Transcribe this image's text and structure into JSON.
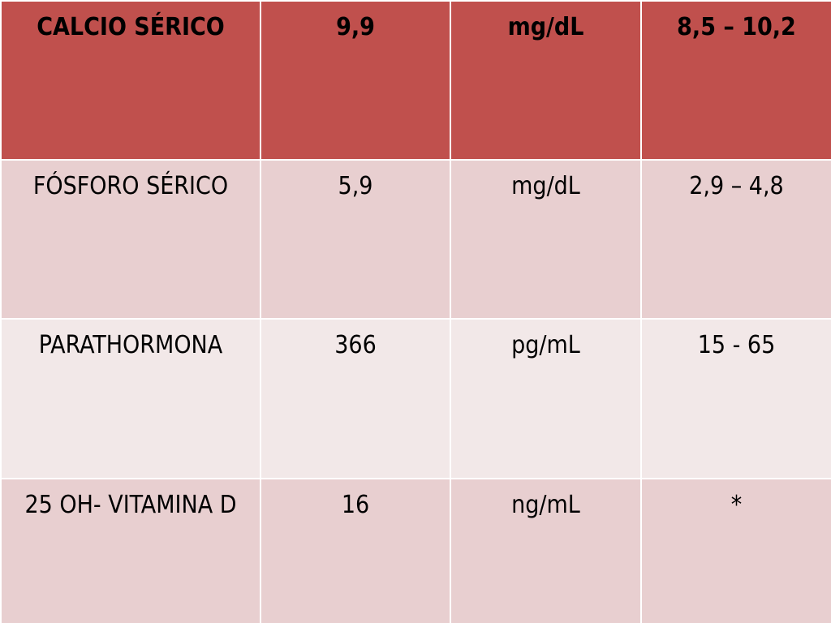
{
  "colors": {
    "header_bg": "#c0504d",
    "row_dark_bg": "#e8cfd0",
    "row_light_bg": "#f2e8e8",
    "border": "#ffffff",
    "text": "#000000"
  },
  "table": {
    "rows": [
      {
        "test": "CALCIO SÉRICO",
        "value": "9,9",
        "unit": "mg/dL",
        "range": "8,5 – 10,2"
      },
      {
        "test": "FÓSFORO SÉRICO",
        "value": "5,9",
        "unit": "mg/dL",
        "range": "2,9 – 4,8"
      },
      {
        "test": "PARATHORMONA",
        "value": "366",
        "unit": "pg/mL",
        "range": "15 - 65"
      },
      {
        "test": "25 OH- VITAMINA D",
        "value": "16",
        "unit": "ng/mL",
        "range": "*"
      }
    ]
  }
}
